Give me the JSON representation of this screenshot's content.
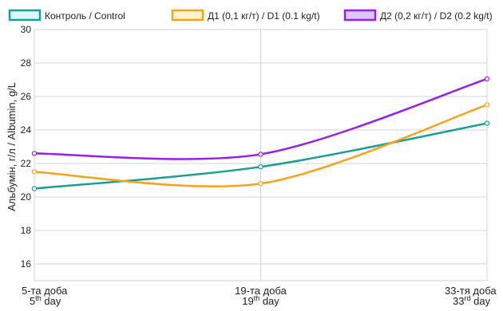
{
  "chart_data": {
    "type": "line",
    "categories": [
      {
        "line1": "5-та доба",
        "line2_num": "5",
        "line2_sup": "th",
        "line2_rest": " day"
      },
      {
        "line1": "19-та доба",
        "line2_num": "19",
        "line2_sup": "th",
        "line2_rest": " day"
      },
      {
        "line1": "33-тя доба",
        "line2_num": "33",
        "line2_sup": "rd",
        "line2_rest": " day"
      }
    ],
    "ylabel": "Альбумін, г/л / Albumin, g/L",
    "xlabel": "",
    "title": "",
    "ylim": [
      15,
      30
    ],
    "yticks": [
      16,
      18,
      20,
      22,
      24,
      26,
      28,
      30
    ],
    "grid": {
      "horizontal": true,
      "vertical": true
    },
    "legend_position": "top",
    "series": [
      {
        "name": "Контроль / Control",
        "values": [
          20.5,
          21.8,
          24.4
        ],
        "color": "#1a9e96",
        "fill": "#dff7f6"
      },
      {
        "name": "Д1 (0,1 кг/т) / D1 (0.1 kg/t)",
        "values": [
          21.5,
          20.8,
          25.5
        ],
        "color": "#f5a21c",
        "fill": "#fdf5cf"
      },
      {
        "name": "Д2 (0,2 кг/т) / D2 (0.2 kg/t)",
        "values": [
          22.6,
          22.55,
          27.05
        ],
        "color": "#9a1ee6",
        "fill": "#d9c7f8"
      }
    ]
  }
}
